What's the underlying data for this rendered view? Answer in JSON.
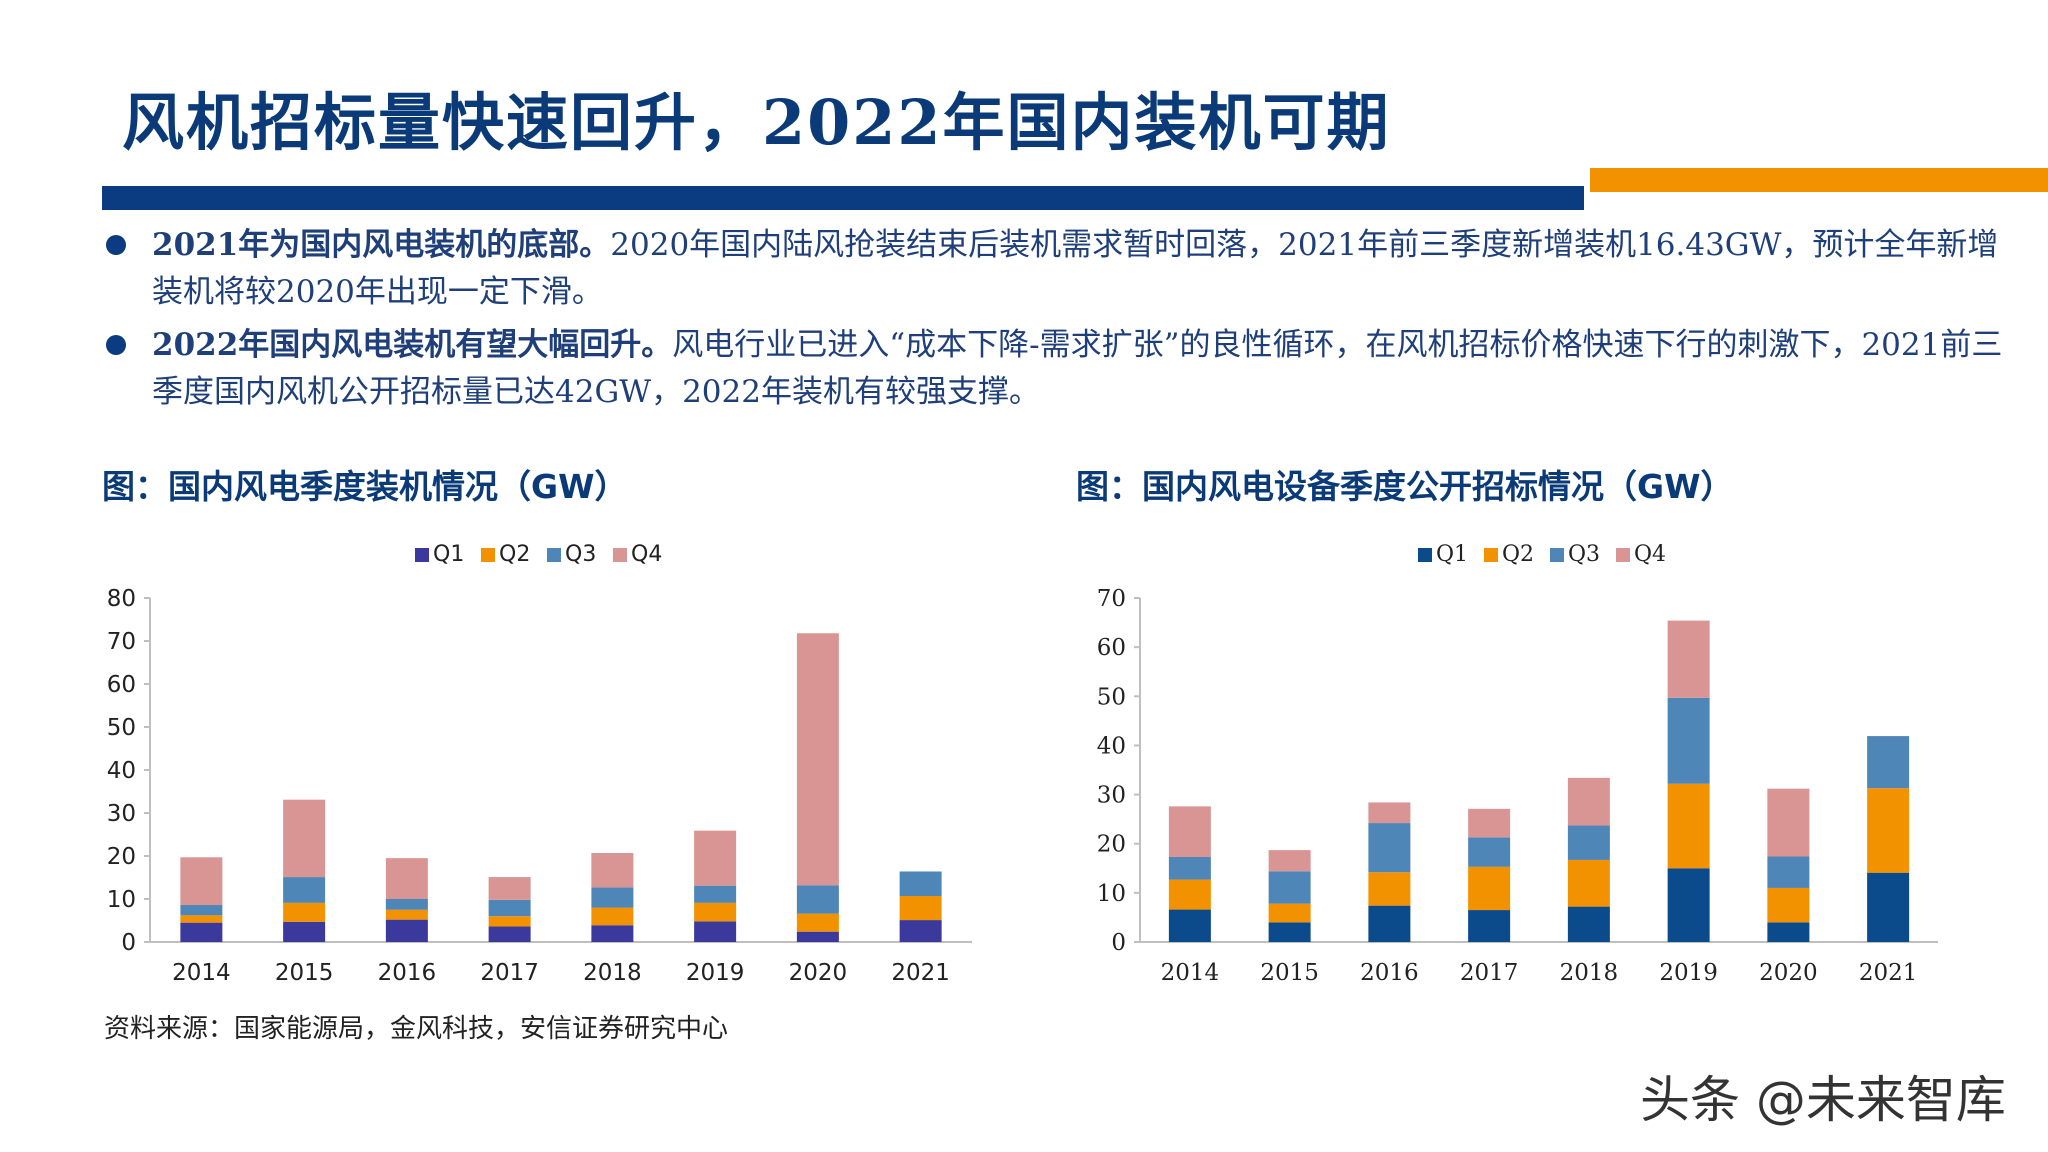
{
  "title": "风机招标量快速回升，2022年国内装机可期",
  "bullets": [
    {
      "bold": "2021年为国内风电装机的底部。",
      "text": "2020年国内陆风抢装结束后装机需求暂时回落，2021年前三季度新增装机16.43GW，预计全年新增装机将较2020年出现一定下滑。"
    },
    {
      "bold": "2022年国内风电装机有望大幅回升。",
      "text": "风电行业已进入“成本下降-需求扩张”的良性循环，在风机招标价格快速下行的刺激下，2021前三季度国内风机公开招标量已达42GW，2022年装机有较强支撑。"
    }
  ],
  "source": "资料来源：国家能源局，金风科技，安信证券研究中心",
  "watermark": "头条 @未来智库",
  "chart_data": [
    {
      "type": "bar",
      "stacked": true,
      "title": "图：国内风电季度装机情况（GW）",
      "categories": [
        "2014",
        "2015",
        "2016",
        "2017",
        "2018",
        "2019",
        "2020",
        "2021"
      ],
      "series": [
        {
          "name": "Q1",
          "color": "#3b3a9c",
          "values": [
            4.5,
            4.7,
            5.2,
            3.6,
            3.9,
            4.8,
            2.4,
            5.1
          ]
        },
        {
          "name": "Q2",
          "color": "#f39200",
          "values": [
            1.7,
            4.4,
            2.3,
            2.4,
            4.1,
            4.3,
            4.2,
            5.6
          ]
        },
        {
          "name": "Q3",
          "color": "#4e86b8",
          "values": [
            2.4,
            6.0,
            2.5,
            3.8,
            4.7,
            4.0,
            6.6,
            5.7
          ]
        },
        {
          "name": "Q4",
          "color": "#d99594",
          "values": [
            11.1,
            18.0,
            9.5,
            5.3,
            8.0,
            12.8,
            58.6,
            0
          ]
        }
      ],
      "ylim": [
        0,
        80
      ],
      "yticks": [
        0,
        10,
        20,
        30,
        40,
        50,
        60,
        70,
        80
      ],
      "legend": "top",
      "grid": false
    },
    {
      "type": "bar",
      "stacked": true,
      "title": "图：国内风电设备季度公开招标情况（GW）",
      "categories": [
        "2014",
        "2015",
        "2016",
        "2017",
        "2018",
        "2019",
        "2020",
        "2021"
      ],
      "series": [
        {
          "name": "Q1",
          "color": "#0b4a8b",
          "values": [
            6.6,
            4.0,
            7.4,
            6.5,
            7.2,
            15.0,
            4.0,
            14.1
          ]
        },
        {
          "name": "Q2",
          "color": "#f39200",
          "values": [
            6.1,
            3.8,
            6.8,
            8.8,
            9.5,
            17.2,
            7.0,
            17.2
          ]
        },
        {
          "name": "Q3",
          "color": "#4e86b8",
          "values": [
            4.6,
            6.6,
            10.0,
            6.0,
            7.0,
            17.5,
            6.4,
            10.6
          ]
        },
        {
          "name": "Q4",
          "color": "#d99594",
          "values": [
            10.3,
            4.3,
            4.2,
            5.8,
            9.7,
            15.7,
            13.8,
            0
          ]
        }
      ],
      "ylim": [
        0,
        70
      ],
      "yticks": [
        0,
        10,
        20,
        30,
        40,
        50,
        60,
        70
      ],
      "legend": "top",
      "grid": false
    }
  ]
}
